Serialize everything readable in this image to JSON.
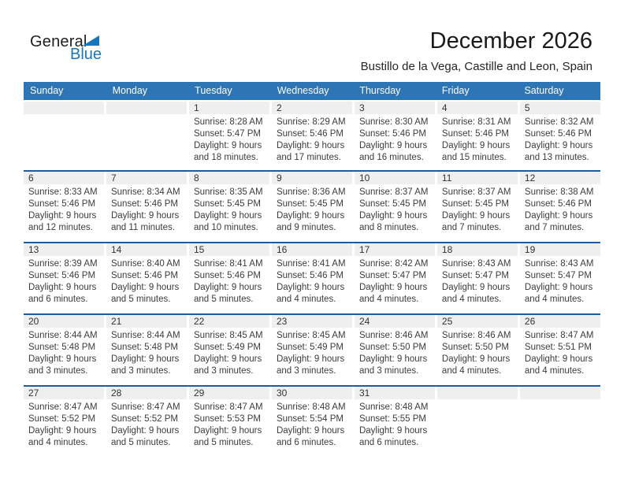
{
  "logo": {
    "part1": "General",
    "part2": "Blue"
  },
  "header": {
    "title": "December 2026",
    "subtitle": "Bustillo de la Vega, Castille and Leon, Spain"
  },
  "colors": {
    "header_blue": "#2E75B6",
    "rule_blue": "#1F5C99",
    "strip_gray": "#EFEFEF",
    "logo_blue": "#1877BC"
  },
  "calendar": {
    "day_headers": [
      "Sunday",
      "Monday",
      "Tuesday",
      "Wednesday",
      "Thursday",
      "Friday",
      "Saturday"
    ],
    "labels": {
      "sunrise": "Sunrise:",
      "sunset": "Sunset:",
      "daylight": "Daylight:"
    },
    "weeks": [
      [
        null,
        null,
        {
          "day": "1",
          "sunrise": "8:28 AM",
          "sunset": "5:47 PM",
          "daylight": "9 hours and 18 minutes."
        },
        {
          "day": "2",
          "sunrise": "8:29 AM",
          "sunset": "5:46 PM",
          "daylight": "9 hours and 17 minutes."
        },
        {
          "day": "3",
          "sunrise": "8:30 AM",
          "sunset": "5:46 PM",
          "daylight": "9 hours and 16 minutes."
        },
        {
          "day": "4",
          "sunrise": "8:31 AM",
          "sunset": "5:46 PM",
          "daylight": "9 hours and 15 minutes."
        },
        {
          "day": "5",
          "sunrise": "8:32 AM",
          "sunset": "5:46 PM",
          "daylight": "9 hours and 13 minutes."
        }
      ],
      [
        {
          "day": "6",
          "sunrise": "8:33 AM",
          "sunset": "5:46 PM",
          "daylight": "9 hours and 12 minutes."
        },
        {
          "day": "7",
          "sunrise": "8:34 AM",
          "sunset": "5:46 PM",
          "daylight": "9 hours and 11 minutes."
        },
        {
          "day": "8",
          "sunrise": "8:35 AM",
          "sunset": "5:45 PM",
          "daylight": "9 hours and 10 minutes."
        },
        {
          "day": "9",
          "sunrise": "8:36 AM",
          "sunset": "5:45 PM",
          "daylight": "9 hours and 9 minutes."
        },
        {
          "day": "10",
          "sunrise": "8:37 AM",
          "sunset": "5:45 PM",
          "daylight": "9 hours and 8 minutes."
        },
        {
          "day": "11",
          "sunrise": "8:37 AM",
          "sunset": "5:45 PM",
          "daylight": "9 hours and 7 minutes."
        },
        {
          "day": "12",
          "sunrise": "8:38 AM",
          "sunset": "5:46 PM",
          "daylight": "9 hours and 7 minutes."
        }
      ],
      [
        {
          "day": "13",
          "sunrise": "8:39 AM",
          "sunset": "5:46 PM",
          "daylight": "9 hours and 6 minutes."
        },
        {
          "day": "14",
          "sunrise": "8:40 AM",
          "sunset": "5:46 PM",
          "daylight": "9 hours and 5 minutes."
        },
        {
          "day": "15",
          "sunrise": "8:41 AM",
          "sunset": "5:46 PM",
          "daylight": "9 hours and 5 minutes."
        },
        {
          "day": "16",
          "sunrise": "8:41 AM",
          "sunset": "5:46 PM",
          "daylight": "9 hours and 4 minutes."
        },
        {
          "day": "17",
          "sunrise": "8:42 AM",
          "sunset": "5:47 PM",
          "daylight": "9 hours and 4 minutes."
        },
        {
          "day": "18",
          "sunrise": "8:43 AM",
          "sunset": "5:47 PM",
          "daylight": "9 hours and 4 minutes."
        },
        {
          "day": "19",
          "sunrise": "8:43 AM",
          "sunset": "5:47 PM",
          "daylight": "9 hours and 4 minutes."
        }
      ],
      [
        {
          "day": "20",
          "sunrise": "8:44 AM",
          "sunset": "5:48 PM",
          "daylight": "9 hours and 3 minutes."
        },
        {
          "day": "21",
          "sunrise": "8:44 AM",
          "sunset": "5:48 PM",
          "daylight": "9 hours and 3 minutes."
        },
        {
          "day": "22",
          "sunrise": "8:45 AM",
          "sunset": "5:49 PM",
          "daylight": "9 hours and 3 minutes."
        },
        {
          "day": "23",
          "sunrise": "8:45 AM",
          "sunset": "5:49 PM",
          "daylight": "9 hours and 3 minutes."
        },
        {
          "day": "24",
          "sunrise": "8:46 AM",
          "sunset": "5:50 PM",
          "daylight": "9 hours and 3 minutes."
        },
        {
          "day": "25",
          "sunrise": "8:46 AM",
          "sunset": "5:50 PM",
          "daylight": "9 hours and 4 minutes."
        },
        {
          "day": "26",
          "sunrise": "8:47 AM",
          "sunset": "5:51 PM",
          "daylight": "9 hours and 4 minutes."
        }
      ],
      [
        {
          "day": "27",
          "sunrise": "8:47 AM",
          "sunset": "5:52 PM",
          "daylight": "9 hours and 4 minutes."
        },
        {
          "day": "28",
          "sunrise": "8:47 AM",
          "sunset": "5:52 PM",
          "daylight": "9 hours and 5 minutes."
        },
        {
          "day": "29",
          "sunrise": "8:47 AM",
          "sunset": "5:53 PM",
          "daylight": "9 hours and 5 minutes."
        },
        {
          "day": "30",
          "sunrise": "8:48 AM",
          "sunset": "5:54 PM",
          "daylight": "9 hours and 6 minutes."
        },
        {
          "day": "31",
          "sunrise": "8:48 AM",
          "sunset": "5:55 PM",
          "daylight": "9 hours and 6 minutes."
        },
        null,
        null
      ]
    ]
  }
}
